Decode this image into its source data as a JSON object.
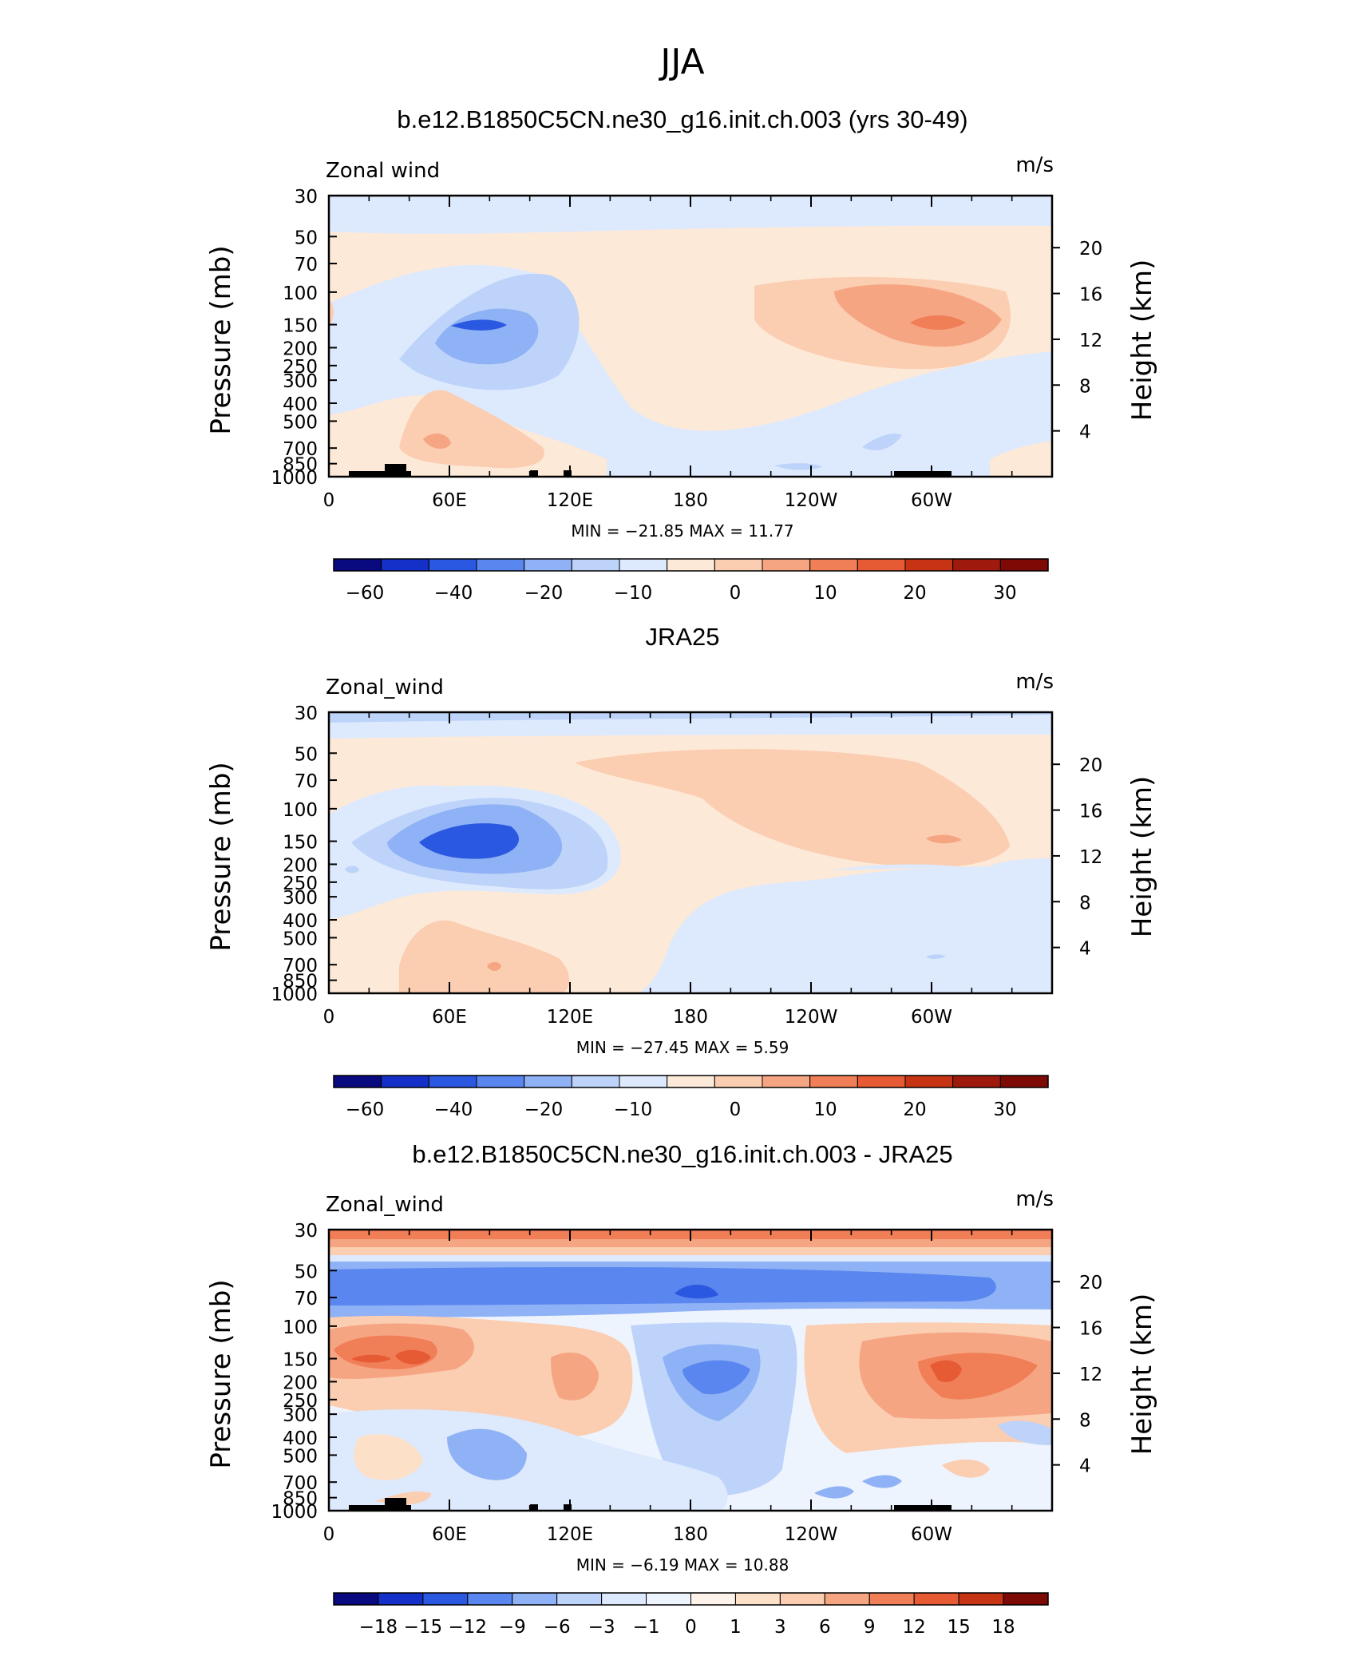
{
  "figure_title": "JJA",
  "chart_data": [
    {
      "type": "heatmap",
      "title": "b.e12.B1850C5CN.ne30_g16.init.ch.003 (yrs 30-49)",
      "left_string": "Zonal wind",
      "right_string": "m/s",
      "ylabel": "Pressure (mb)",
      "ylabel_right": "Height (km)",
      "x_ticks": [
        "0",
        "60E",
        "120E",
        "180",
        "120W",
        "60W"
      ],
      "y_ticks": [
        "30",
        "50",
        "70",
        "100",
        "150",
        "200",
        "250",
        "300",
        "400",
        "500",
        "700",
        "850",
        "1000"
      ],
      "y_right_ticks": [
        "20",
        "16",
        "12",
        "8",
        "4"
      ],
      "min_max_text": "MIN = −21.85   MAX =   11.77",
      "min": -21.85,
      "max": 11.77,
      "colorbar_labels": [
        "−60",
        "−40",
        "−20",
        "−10",
        "0",
        "10",
        "20",
        "30"
      ],
      "colorbar_colors": [
        "#0a0a80",
        "#1530c8",
        "#2b58e0",
        "#5a86ef",
        "#8fb1f5",
        "#bdd3fa",
        "#dde9fd",
        "#fde9d8",
        "#fbcdb1",
        "#f6a583",
        "#f07e57",
        "#e65a34",
        "#c63414",
        "#9e1a0c",
        "#7d0a05"
      ],
      "land_fill": "#000000"
    },
    {
      "type": "heatmap",
      "title": "JRA25",
      "left_string": "Zonal_wind",
      "right_string": "m/s",
      "ylabel": "Pressure (mb)",
      "ylabel_right": "Height (km)",
      "x_ticks": [
        "0",
        "60E",
        "120E",
        "180",
        "120W",
        "60W"
      ],
      "y_ticks": [
        "30",
        "50",
        "70",
        "100",
        "150",
        "200",
        "250",
        "300",
        "400",
        "500",
        "700",
        "850",
        "1000"
      ],
      "y_right_ticks": [
        "20",
        "16",
        "12",
        "8",
        "4"
      ],
      "min_max_text": "MIN = −27.45   MAX =    5.59",
      "min": -27.45,
      "max": 5.59,
      "colorbar_labels": [
        "−60",
        "−40",
        "−20",
        "−10",
        "0",
        "10",
        "20",
        "30"
      ],
      "colorbar_colors": [
        "#0a0a80",
        "#1530c8",
        "#2b58e0",
        "#5a86ef",
        "#8fb1f5",
        "#bdd3fa",
        "#dde9fd",
        "#fde9d8",
        "#fbcdb1",
        "#f6a583",
        "#f07e57",
        "#e65a34",
        "#c63414",
        "#9e1a0c",
        "#7d0a05"
      ]
    },
    {
      "type": "heatmap",
      "title": "b.e12.B1850C5CN.ne30_g16.init.ch.003 - JRA25",
      "left_string": "Zonal_wind",
      "right_string": "m/s",
      "ylabel": "Pressure (mb)",
      "ylabel_right": "Height (km)",
      "x_ticks": [
        "0",
        "60E",
        "120E",
        "180",
        "120W",
        "60W"
      ],
      "y_ticks": [
        "30",
        "50",
        "70",
        "100",
        "150",
        "200",
        "250",
        "300",
        "400",
        "500",
        "700",
        "850",
        "1000"
      ],
      "y_right_ticks": [
        "20",
        "16",
        "12",
        "8",
        "4"
      ],
      "min_max_text": "MIN =   −6.19   MAX =   10.88",
      "min": -6.19,
      "max": 10.88,
      "colorbar_labels": [
        "−18",
        "−15",
        "−12",
        "−9",
        "−6",
        "−3",
        "−1",
        "0",
        "1",
        "3",
        "6",
        "9",
        "12",
        "15",
        "18"
      ],
      "colorbar_colors": [
        "#0a0a80",
        "#1530c8",
        "#2b58e0",
        "#5a86ef",
        "#8fb1f5",
        "#bdd3fa",
        "#dde9fd",
        "#eef4fe",
        "#fef3ea",
        "#fde0c8",
        "#fbcdb1",
        "#f6a583",
        "#f07e57",
        "#e65a34",
        "#c63414",
        "#7d0a05"
      ],
      "land_fill": "#000000"
    }
  ]
}
